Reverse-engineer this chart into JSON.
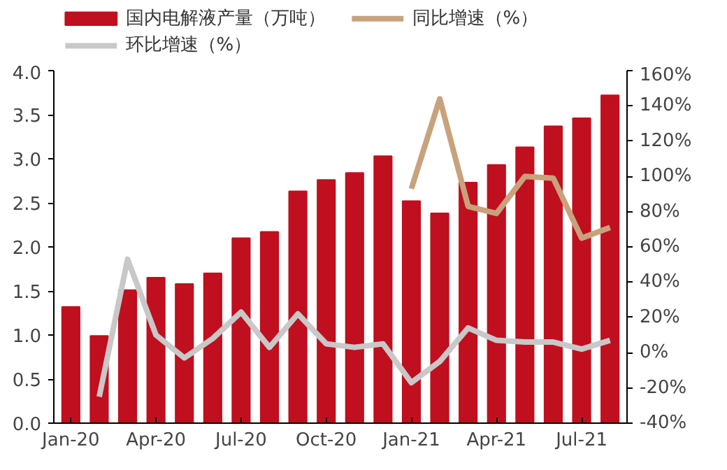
{
  "chart_data": {
    "type": "bar",
    "categories": [
      "Jan-20",
      null,
      null,
      "Apr-20",
      null,
      null,
      "Jul-20",
      null,
      null,
      "Oct-20",
      null,
      null,
      "Jan-21",
      null,
      null,
      "Apr-21",
      null,
      null,
      "Jul-21",
      null
    ],
    "series": [
      {
        "name": "国内电解液产量（万吨）",
        "color": "#c00f1e",
        "values": [
          1.32,
          0.99,
          1.51,
          1.65,
          1.58,
          1.7,
          2.1,
          2.17,
          2.63,
          2.76,
          2.84,
          3.03,
          2.52,
          2.38,
          2.73,
          2.93,
          3.13,
          3.37,
          3.46,
          3.72
        ]
      },
      {
        "name": "同比增速（%）",
        "color": "#c8a27c",
        "type": "line",
        "axis": "y2",
        "values": [
          null,
          null,
          null,
          null,
          null,
          null,
          null,
          null,
          null,
          null,
          null,
          null,
          93,
          144,
          83,
          79,
          100,
          99,
          65,
          71
        ]
      },
      {
        "name": "环比增速（%）",
        "color": "#c8c8c8",
        "type": "line",
        "axis": "y2",
        "values": [
          null,
          -25,
          53,
          10,
          -3,
          8,
          23,
          3,
          22,
          5,
          3,
          5,
          -17,
          -5,
          14,
          7,
          6,
          6,
          2,
          7
        ]
      }
    ],
    "ylim": [
      0,
      4
    ],
    "yticks": [
      {
        "value": 0,
        "label": "0.0"
      },
      {
        "value": 0.5,
        "label": "0.5"
      },
      {
        "value": 1,
        "label": "1.0"
      },
      {
        "value": 1.5,
        "label": "1.5"
      },
      {
        "value": 2,
        "label": "2.0"
      },
      {
        "value": 2.5,
        "label": "2.5"
      },
      {
        "value": 3,
        "label": "3.0"
      },
      {
        "value": 3.5,
        "label": "3.5"
      },
      {
        "value": 4,
        "label": "4.0"
      }
    ],
    "y2lim": [
      -40,
      160
    ],
    "y2ticks": [
      {
        "value": -40,
        "label": "-40%"
      },
      {
        "value": -20,
        "label": "-20%"
      },
      {
        "value": 0,
        "label": "0%"
      },
      {
        "value": 20,
        "label": "20%"
      },
      {
        "value": 40,
        "label": "40%"
      },
      {
        "value": 60,
        "label": "60%"
      },
      {
        "value": 80,
        "label": "80%"
      },
      {
        "value": 100,
        "label": "100%"
      },
      {
        "value": 120,
        "label": "120%"
      },
      {
        "value": 140,
        "label": "140%"
      },
      {
        "value": 160,
        "label": "160%"
      }
    ],
    "grid": false,
    "legend": "top",
    "marker": "none",
    "line_style": "solid"
  }
}
